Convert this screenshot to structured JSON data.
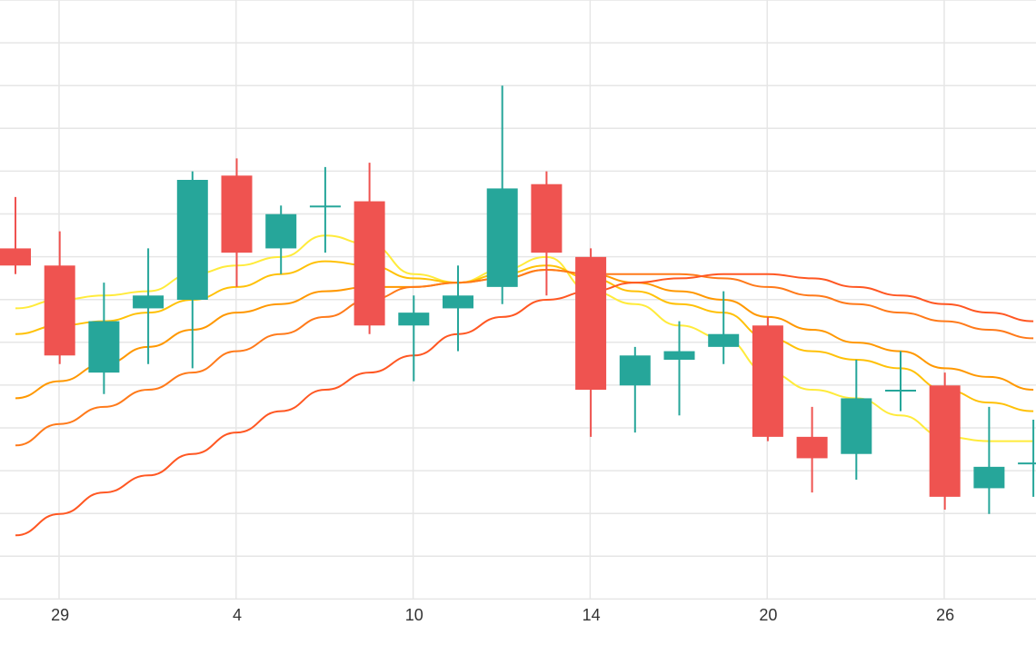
{
  "chart_data": {
    "type": "candlestick",
    "x_tick_labels": [
      {
        "label": "29",
        "index": 1
      },
      {
        "label": "4",
        "index": 5
      },
      {
        "label": "10",
        "index": 9
      },
      {
        "label": "14",
        "index": 13
      },
      {
        "label": "20",
        "index": 17
      },
      {
        "label": "26",
        "index": 21
      }
    ],
    "grid": true,
    "ylim": [
      0,
      14
    ],
    "candles": [
      {
        "open": 8.2,
        "high": 9.4,
        "low": 7.6,
        "close": 7.8
      },
      {
        "open": 7.8,
        "high": 8.6,
        "low": 5.5,
        "close": 5.7
      },
      {
        "open": 5.3,
        "high": 7.4,
        "low": 4.8,
        "close": 6.5
      },
      {
        "open": 6.8,
        "high": 8.2,
        "low": 5.5,
        "close": 7.1
      },
      {
        "open": 7.0,
        "high": 10.0,
        "low": 5.4,
        "close": 9.8
      },
      {
        "open": 9.9,
        "high": 10.3,
        "low": 7.3,
        "close": 8.1
      },
      {
        "open": 8.2,
        "high": 9.2,
        "low": 7.6,
        "close": 9.0
      },
      {
        "open": 9.2,
        "high": 10.1,
        "low": 8.1,
        "close": 9.2
      },
      {
        "open": 9.3,
        "high": 10.2,
        "low": 6.2,
        "close": 6.4
      },
      {
        "open": 6.4,
        "high": 7.1,
        "low": 5.1,
        "close": 6.7
      },
      {
        "open": 6.8,
        "high": 7.8,
        "low": 5.8,
        "close": 7.1
      },
      {
        "open": 7.3,
        "high": 12.0,
        "low": 6.9,
        "close": 9.6
      },
      {
        "open": 9.7,
        "high": 10.0,
        "low": 7.1,
        "close": 8.1
      },
      {
        "open": 8.0,
        "high": 8.2,
        "low": 3.8,
        "close": 4.9
      },
      {
        "open": 5.0,
        "high": 5.9,
        "low": 3.9,
        "close": 5.7
      },
      {
        "open": 5.6,
        "high": 6.5,
        "low": 4.3,
        "close": 5.8
      },
      {
        "open": 5.9,
        "high": 7.2,
        "low": 5.5,
        "close": 6.2
      },
      {
        "open": 6.4,
        "high": 6.6,
        "low": 3.7,
        "close": 3.8
      },
      {
        "open": 3.8,
        "high": 4.5,
        "low": 2.5,
        "close": 3.3
      },
      {
        "open": 3.4,
        "high": 5.6,
        "low": 2.8,
        "close": 4.7
      },
      {
        "open": 4.9,
        "high": 5.8,
        "low": 4.4,
        "close": 4.9
      },
      {
        "open": 5.0,
        "high": 5.3,
        "low": 2.1,
        "close": 2.4
      },
      {
        "open": 2.6,
        "high": 4.5,
        "low": 2.0,
        "close": 3.1
      },
      {
        "open": 3.2,
        "high": 4.2,
        "low": 2.4,
        "close": 3.2
      }
    ],
    "moving_averages": [
      {
        "color": "#ffeb3b",
        "values": [
          6.8,
          7.0,
          7.1,
          7.2,
          7.6,
          7.8,
          8.0,
          8.5,
          8.3,
          7.6,
          7.4,
          7.7,
          8.0,
          7.2,
          6.9,
          6.4,
          6.1,
          5.3,
          4.9,
          4.7,
          4.3,
          3.8,
          3.7,
          3.7
        ]
      },
      {
        "color": "#ffc107",
        "values": [
          6.2,
          6.4,
          6.5,
          6.7,
          7.0,
          7.3,
          7.6,
          7.9,
          7.8,
          7.5,
          7.4,
          7.6,
          7.8,
          7.5,
          7.2,
          6.9,
          6.7,
          6.1,
          5.8,
          5.6,
          5.4,
          4.9,
          4.6,
          4.4
        ]
      },
      {
        "color": "#ff9800",
        "values": [
          4.7,
          5.1,
          5.5,
          5.9,
          6.3,
          6.7,
          6.9,
          7.2,
          7.3,
          7.3,
          7.4,
          7.5,
          7.7,
          7.6,
          7.4,
          7.2,
          7.0,
          6.6,
          6.3,
          6.0,
          5.8,
          5.4,
          5.2,
          4.9
        ]
      },
      {
        "color": "#ff7a1a",
        "values": [
          3.6,
          4.1,
          4.5,
          4.9,
          5.3,
          5.8,
          6.2,
          6.6,
          7.0,
          7.3,
          7.4,
          7.5,
          7.7,
          7.6,
          7.6,
          7.6,
          7.5,
          7.3,
          7.1,
          6.9,
          6.7,
          6.5,
          6.3,
          6.1
        ]
      },
      {
        "color": "#ff5722",
        "values": [
          1.5,
          2.0,
          2.5,
          2.9,
          3.4,
          3.9,
          4.4,
          4.9,
          5.3,
          5.7,
          6.2,
          6.6,
          7.0,
          7.2,
          7.4,
          7.5,
          7.6,
          7.6,
          7.5,
          7.3,
          7.1,
          6.9,
          6.7,
          6.5
        ]
      }
    ],
    "colors": {
      "up": "#26a69a",
      "down": "#ef5350",
      "grid": "#e6e6e6"
    }
  }
}
